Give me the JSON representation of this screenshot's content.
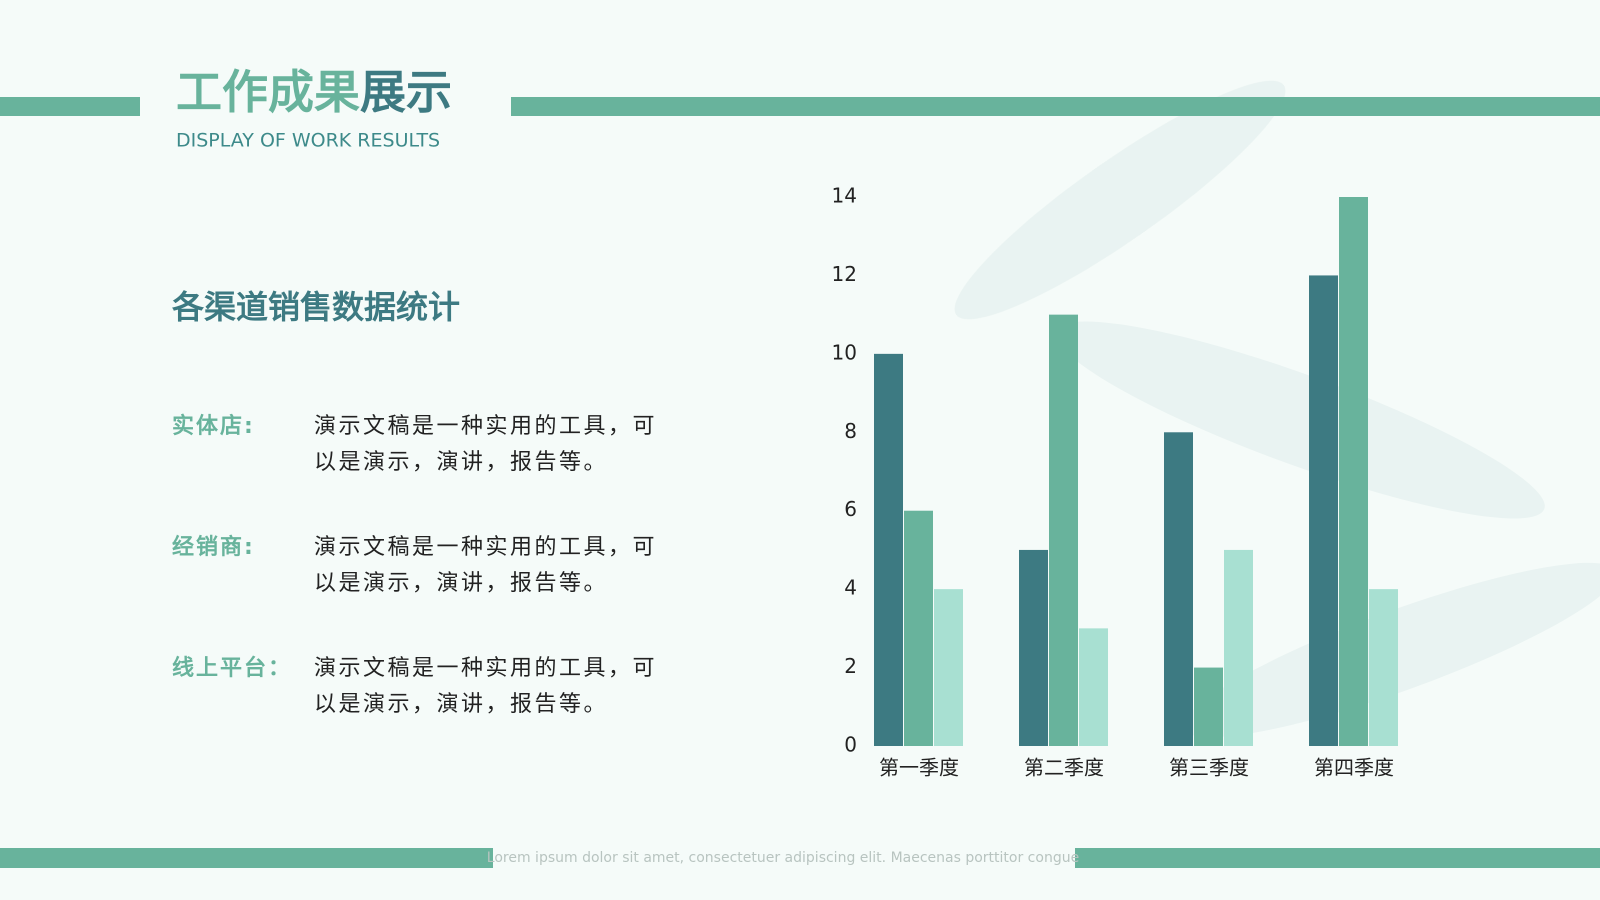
{
  "header": {
    "title_part1": "工作成果",
    "title_part2": "展示",
    "subtitle": "DISPLAY OF WORK RESULTS"
  },
  "section_title": "各渠道销售数据统计",
  "items": [
    {
      "label": "实体店:",
      "lines": [
        "演示文稿是一种实用的工具，可",
        "以是演示，演讲，报告等。"
      ]
    },
    {
      "label": "经销商:",
      "lines": [
        "演示文稿是一种实用的工具，可",
        "以是演示，演讲，报告等。"
      ]
    },
    {
      "label": "线上平台：",
      "lines": [
        "演示文稿是一种实用的工具，可",
        "以是演示，演讲，报告等。"
      ]
    }
  ],
  "footer": "Lorem ipsum dolor sit amet, consectetuer adipiscing elit. Maecenas porttitor congue",
  "chart_data": {
    "type": "bar",
    "categories": [
      "第一季度",
      "第二季度",
      "第三季度",
      "第四季度"
    ],
    "series": [
      {
        "color": "#3d7a82",
        "values": [
          10,
          5,
          8,
          12
        ]
      },
      {
        "color": "#68b39c",
        "values": [
          6,
          11,
          2,
          14
        ]
      },
      {
        "color": "#a8e0d2",
        "values": [
          4,
          3,
          5,
          4
        ]
      }
    ],
    "ylim": [
      0,
      14
    ],
    "yticks": [
      0,
      2,
      4,
      6,
      8,
      10,
      12,
      14
    ],
    "grid": false
  }
}
